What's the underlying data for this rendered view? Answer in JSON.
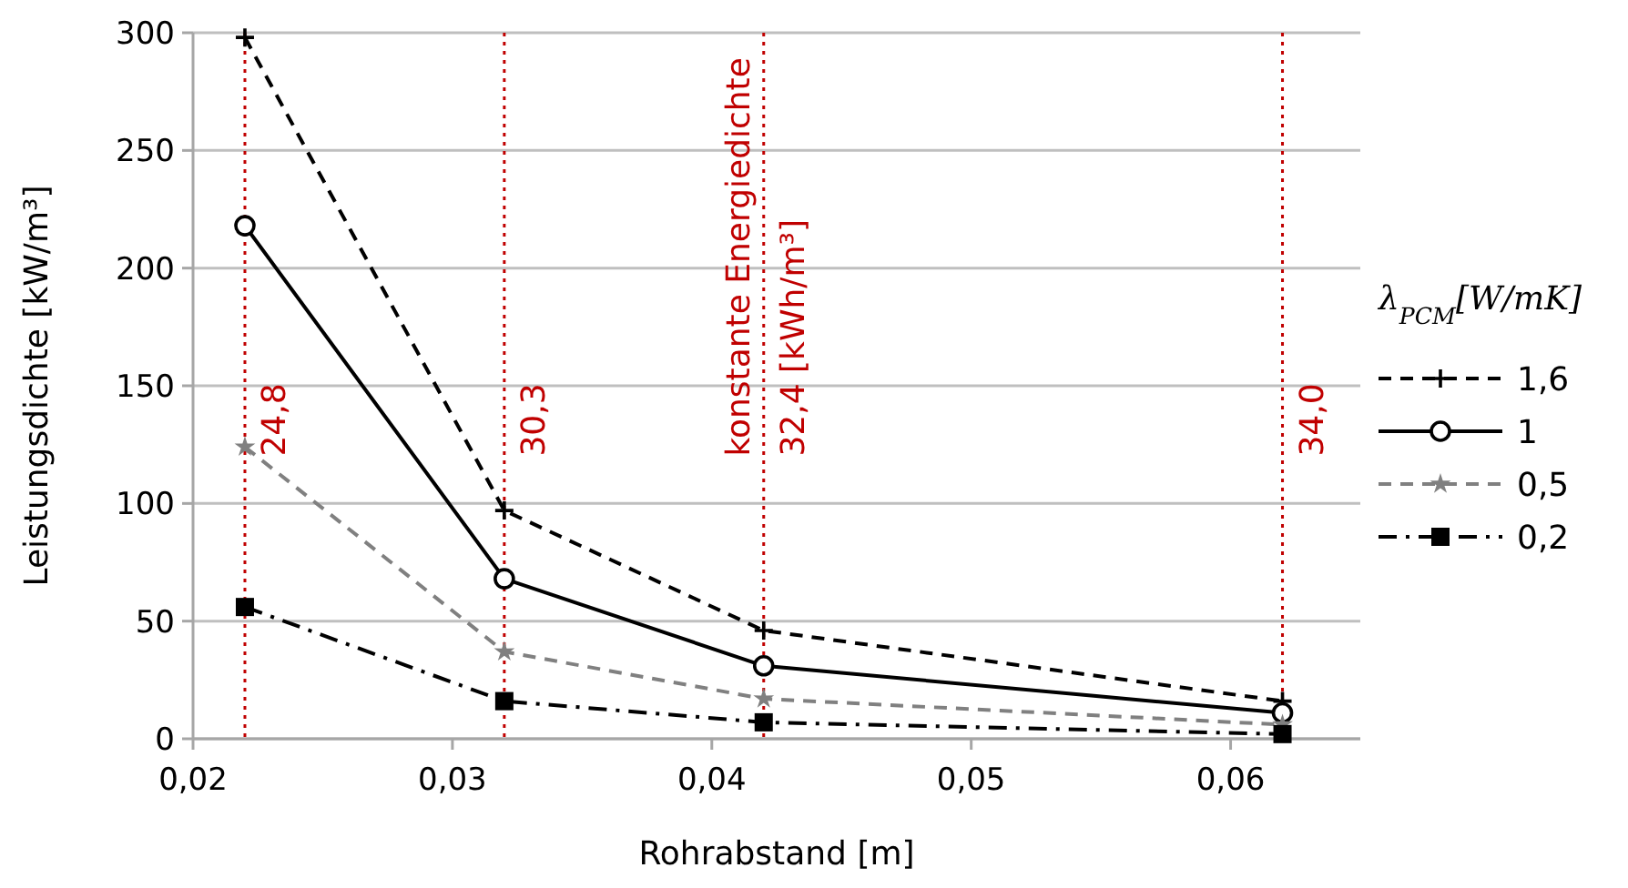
{
  "chart_data": {
    "type": "line",
    "xlabel": "Rohrabstand [m]",
    "ylabel": "Leistungsdichte [kW/m³]",
    "legend_title": "λ$_{PCM}$[W/mK]",
    "x": [
      0.022,
      0.032,
      0.042,
      0.062
    ],
    "xlim": [
      0.02,
      0.065
    ],
    "xticks": [
      {
        "value": 0.02,
        "label": "0,02"
      },
      {
        "value": 0.03,
        "label": "0,03"
      },
      {
        "value": 0.04,
        "label": "0,04"
      },
      {
        "value": 0.05,
        "label": "0,05"
      },
      {
        "value": 0.06,
        "label": "0,06"
      }
    ],
    "ylim": [
      0,
      300
    ],
    "yticks": [
      0,
      50,
      100,
      150,
      200,
      250,
      300
    ],
    "grid": "y",
    "legend": "right",
    "series": [
      {
        "name": "1,6",
        "color": "#000000",
        "values": [
          298,
          97,
          46,
          16
        ],
        "marker": "cross",
        "line_style": "dashed"
      },
      {
        "name": "1",
        "color": "#000000",
        "values": [
          218,
          68,
          31,
          11
        ],
        "marker": "circle",
        "line_style": "solid"
      },
      {
        "name": "0,5",
        "color": "#808080",
        "values": [
          124,
          37,
          17,
          6
        ],
        "marker": "star",
        "line_style": "dashed"
      },
      {
        "name": "0,2",
        "color": "#000000",
        "values": [
          56,
          16,
          7,
          2
        ],
        "marker": "square",
        "line_style": "dashdot"
      }
    ],
    "ref_lines": [
      {
        "axis": "x",
        "value": 0.022,
        "color": "#c00000",
        "line_style": "dotted"
      },
      {
        "axis": "x",
        "value": 0.032,
        "color": "#c00000",
        "line_style": "dotted"
      },
      {
        "axis": "x",
        "value": 0.042,
        "color": "#c00000",
        "line_style": "dotted"
      },
      {
        "axis": "x",
        "value": 0.062,
        "color": "#c00000",
        "line_style": "dotted"
      }
    ],
    "annotations": [
      {
        "text": "24,8",
        "x": 0.022,
        "y": 120
      },
      {
        "text": "30,3",
        "x": 0.032,
        "y": 120
      },
      {
        "text": "konstante Energiedichte\n32,4 [kWh/m³]",
        "x": 0.042,
        "y": 120
      },
      {
        "text": "34,0",
        "x": 0.062,
        "y": 120
      }
    ]
  }
}
